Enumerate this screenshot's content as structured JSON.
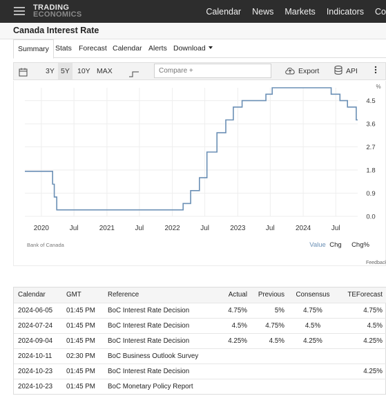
{
  "nav": {
    "logo_line1": "TRADING",
    "logo_line2": "ECONOMICS",
    "links": [
      "Calendar",
      "News",
      "Markets",
      "Indicators",
      "Co"
    ]
  },
  "page_title": "Canada Interest Rate",
  "tabs": [
    "Summary",
    "Stats",
    "Forecast",
    "Calendar",
    "Alerts",
    "Download"
  ],
  "active_tab": "Summary",
  "toolbar": {
    "ranges": [
      "3Y",
      "5Y",
      "10Y",
      "MAX"
    ],
    "selected_range": "5Y",
    "compare_placeholder": "Compare +",
    "export_label": "Export",
    "api_label": "API"
  },
  "chart_data": {
    "type": "line",
    "unit_label": "%",
    "color": "#6a8fb5",
    "y_ticks": [
      "4.5",
      "3.6",
      "2.7",
      "1.8",
      "0.9",
      "0.0"
    ],
    "y_tick_values": [
      4.5,
      3.6,
      2.7,
      1.8,
      0.9,
      0.0
    ],
    "ylim": [
      0.0,
      5.0
    ],
    "x_ticks": [
      "2020",
      "Jul",
      "2021",
      "Jul",
      "2022",
      "Jul",
      "2023",
      "Jul",
      "2024",
      "Jul"
    ],
    "x_tick_values": [
      "2020-01-01",
      "2020-07-01",
      "2021-01-01",
      "2021-07-01",
      "2022-01-01",
      "2022-07-01",
      "2023-01-01",
      "2023-07-01",
      "2024-01-01",
      "2024-07-01"
    ],
    "xlim": [
      "2019-10-01",
      "2024-10-31"
    ],
    "grid": true,
    "series": [
      {
        "x": [
          "2019-10-01",
          "2020-03-04",
          "2020-03-13",
          "2020-03-27",
          "2022-03-02",
          "2022-04-13",
          "2022-06-01",
          "2022-07-13",
          "2022-09-07",
          "2022-10-26",
          "2022-12-07",
          "2023-01-25",
          "2023-06-07",
          "2023-07-12",
          "2024-06-05",
          "2024-07-24",
          "2024-09-04",
          "2024-10-23"
        ],
        "y": [
          1.75,
          1.25,
          0.75,
          0.25,
          0.5,
          1.0,
          1.5,
          2.5,
          3.25,
          3.75,
          4.25,
          4.5,
          4.75,
          5.0,
          4.75,
          4.5,
          4.25,
          3.75
        ]
      }
    ],
    "source": "Bank of Canada",
    "toggles": [
      "Value",
      "Chg",
      "Chg%"
    ],
    "feedback": "Feedback"
  },
  "table": {
    "headers": [
      "Calendar",
      "GMT",
      "Reference",
      "Actual",
      "Previous",
      "Consensus",
      "TEForecast"
    ],
    "rows": [
      [
        "2024-06-05",
        "01:45 PM",
        "BoC Interest Rate Decision",
        "4.75%",
        "5%",
        "4.75%",
        "4.75%"
      ],
      [
        "2024-07-24",
        "01:45 PM",
        "BoC Interest Rate Decision",
        "4.5%",
        "4.75%",
        "4.5%",
        "4.5%"
      ],
      [
        "2024-09-04",
        "01:45 PM",
        "BoC Interest Rate Decision",
        "4.25%",
        "4.5%",
        "4.25%",
        "4.25%"
      ],
      [
        "2024-10-11",
        "02:30 PM",
        "BoC Business Outlook Survey",
        "",
        "",
        "",
        ""
      ],
      [
        "2024-10-23",
        "01:45 PM",
        "BoC Interest Rate Decision",
        "",
        "",
        "",
        "4.25%"
      ],
      [
        "2024-10-23",
        "01:45 PM",
        "BoC Monetary Policy Report",
        "",
        "",
        "",
        ""
      ]
    ]
  }
}
